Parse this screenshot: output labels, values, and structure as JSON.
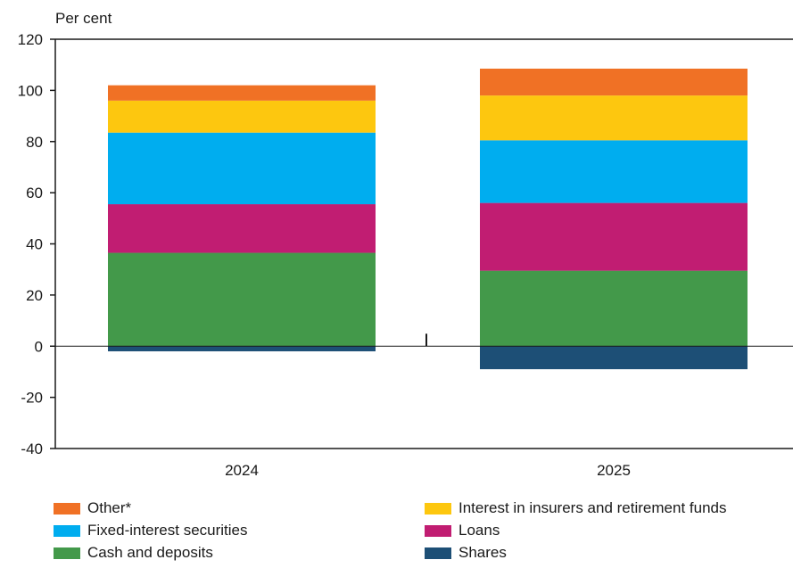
{
  "chart_data": {
    "type": "bar",
    "stacked": true,
    "ylabel": "Per cent",
    "ylim": [
      -40,
      120
    ],
    "yticks": [
      120,
      100,
      80,
      60,
      40,
      20,
      0,
      -20,
      -40
    ],
    "categories": [
      "2024",
      "2025"
    ],
    "series": [
      {
        "name": "Shares",
        "color": "#1d4f76",
        "values": [
          -2,
          -9
        ]
      },
      {
        "name": "Cash and deposits",
        "color": "#43994a",
        "values": [
          36.5,
          29.5
        ]
      },
      {
        "name": "Loans",
        "color": "#c11d72",
        "values": [
          19,
          26.5
        ]
      },
      {
        "name": "Fixed-interest securities",
        "color": "#00adef",
        "values": [
          28,
          24.5
        ]
      },
      {
        "name": "Interest in insurers and retirement funds",
        "color": "#fdc70f",
        "values": [
          12.5,
          17.5
        ]
      },
      {
        "name": "Other*",
        "color": "#f07125",
        "values": [
          6,
          10.5
        ]
      }
    ],
    "legend_order": [
      "Other*",
      "Interest in insurers and retirement funds",
      "Fixed-interest securities",
      "Loans",
      "Cash and deposits",
      "Shares"
    ],
    "legend_position": "bottom",
    "grid": false
  }
}
